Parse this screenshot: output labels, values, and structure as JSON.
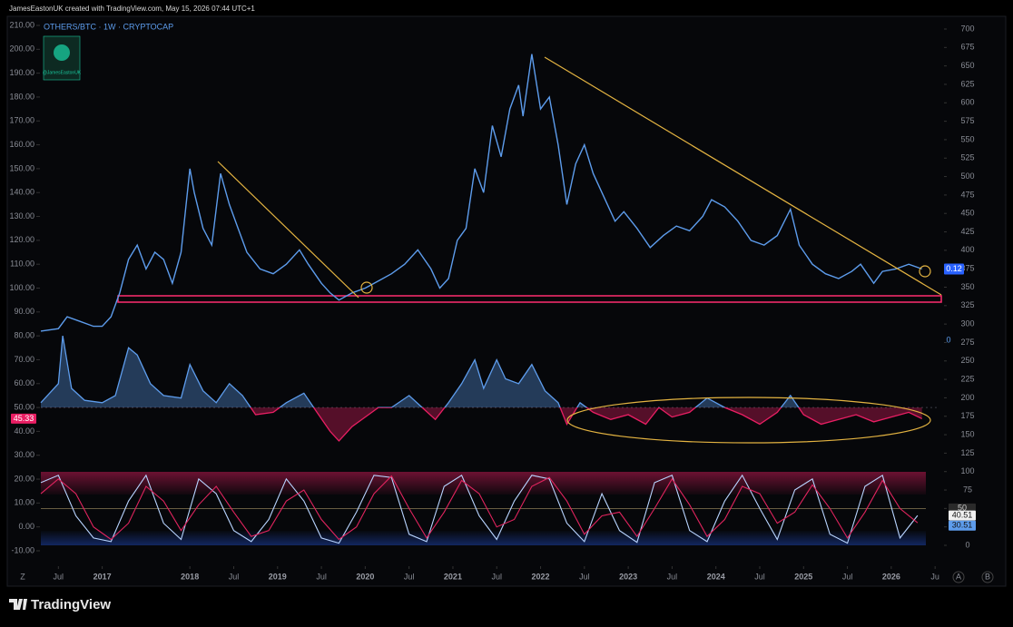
{
  "header": "JamesEastonUK created with TradingView.com, May 15, 2026 07:44 UTC+1",
  "footer": "TradingView",
  "controls": [
    "Z",
    "A",
    "B"
  ],
  "chart_data": {
    "type": "line",
    "title": "OTHERS/BTC · 1W · CRYPTOCAP",
    "watermark": "@JamesEastonUK",
    "grid": false,
    "last_price": 0.12,
    "extra_tag": 0,
    "rsi_midline": 50,
    "stoch_midline": 50,
    "xlim": [
      2016.3,
      2026.55
    ],
    "xticks": [
      {
        "value": 2016.5,
        "label": "Jul"
      },
      {
        "value": 2017,
        "label": "2017"
      },
      {
        "value": 2018,
        "label": "2018"
      },
      {
        "value": 2018.5,
        "label": "Jul"
      },
      {
        "value": 2019,
        "label": "2019"
      },
      {
        "value": 2019.5,
        "label": "Jul"
      },
      {
        "value": 2020,
        "label": "2020"
      },
      {
        "value": 2020.5,
        "label": "Jul"
      },
      {
        "value": 2021,
        "label": "2021"
      },
      {
        "value": 2021.5,
        "label": "Jul"
      },
      {
        "value": 2022,
        "label": "2022"
      },
      {
        "value": 2022.5,
        "label": "Jul"
      },
      {
        "value": 2023,
        "label": "2023"
      },
      {
        "value": 2023.5,
        "label": "Jul"
      },
      {
        "value": 2024,
        "label": "2024"
      },
      {
        "value": 2024.5,
        "label": "Jul"
      },
      {
        "value": 2025,
        "label": "2025"
      },
      {
        "value": 2025.5,
        "label": "Jul"
      },
      {
        "value": 2026,
        "label": "2026"
      },
      {
        "value": 2026.5,
        "label": "Ju"
      }
    ],
    "ylim": [
      -10,
      210
    ],
    "yticks": [
      {
        "value": 210,
        "label": "210.00"
      },
      {
        "value": 200,
        "label": "200.00"
      },
      {
        "value": 190,
        "label": "190.00"
      },
      {
        "value": 180,
        "label": "180.00"
      },
      {
        "value": 170,
        "label": "170.00"
      },
      {
        "value": 160,
        "label": "160.00"
      },
      {
        "value": 150,
        "label": "150.00"
      },
      {
        "value": 140,
        "label": "140.00"
      },
      {
        "value": 130,
        "label": "130.00"
      },
      {
        "value": 120,
        "label": "120.00"
      },
      {
        "value": 110,
        "label": "110.00"
      },
      {
        "value": 100,
        "label": "100.00"
      },
      {
        "value": 90,
        "label": "90.00"
      },
      {
        "value": 80,
        "label": "80.00"
      },
      {
        "value": 70,
        "label": "70.00"
      },
      {
        "value": 60,
        "label": "60.00"
      },
      {
        "value": 50,
        "label": "50.00"
      },
      {
        "value": 40,
        "label": "40.00"
      },
      {
        "value": 30,
        "label": "30.00"
      },
      {
        "value": 20,
        "label": "20.00"
      },
      {
        "value": 10,
        "label": "10.00"
      },
      {
        "value": 0,
        "label": "0.00"
      },
      {
        "value": -10,
        "label": "-10.00"
      }
    ],
    "y2lim": [
      0,
      700
    ],
    "y2ticks": [
      700,
      675,
      650,
      625,
      600,
      575,
      550,
      525,
      500,
      475,
      450,
      425,
      400,
      375,
      350,
      325,
      300,
      275,
      250,
      225,
      200,
      175,
      150,
      125,
      100,
      75,
      50,
      25,
      0
    ],
    "series": [
      {
        "color": "#5d9cec",
        "x": [
          2016.3,
          2016.5,
          2016.6,
          2016.75,
          2016.9,
          2017.0,
          2017.1,
          2017.2,
          2017.3,
          2017.4,
          2017.5,
          2017.6,
          2017.7,
          2017.8,
          2017.9,
          2018.0,
          2018.05,
          2018.15,
          2018.25,
          2018.35,
          2018.45,
          2018.55,
          2018.65,
          2018.8,
          2018.95,
          2019.1,
          2019.25,
          2019.35,
          2019.5,
          2019.6,
          2019.7,
          2019.85,
          2020.0,
          2020.15,
          2020.3,
          2020.45,
          2020.6,
          2020.75,
          2020.85,
          2020.95,
          2021.05,
          2021.15,
          2021.25,
          2021.35,
          2021.45,
          2021.55,
          2021.65,
          2021.75,
          2021.8,
          2021.9,
          2022.0,
          2022.1,
          2022.2,
          2022.3,
          2022.4,
          2022.5,
          2022.6,
          2022.7,
          2022.85,
          2022.95,
          2023.1,
          2023.25,
          2023.4,
          2023.55,
          2023.7,
          2023.85,
          2023.95,
          2024.1,
          2024.25,
          2024.4,
          2024.55,
          2024.7,
          2024.85,
          2024.95,
          2025.1,
          2025.25,
          2025.4,
          2025.55,
          2025.65,
          2025.8,
          2025.9,
          2026.05,
          2026.2,
          2026.35
        ],
        "values": [
          82,
          83,
          88,
          86,
          84,
          84,
          88,
          98,
          112,
          118,
          108,
          115,
          112,
          102,
          115,
          150,
          140,
          125,
          118,
          148,
          135,
          125,
          115,
          108,
          106,
          110,
          116,
          110,
          102,
          98,
          95,
          98,
          100,
          103,
          106,
          110,
          116,
          108,
          100,
          104,
          120,
          125,
          150,
          140,
          168,
          155,
          175,
          185,
          172,
          198,
          175,
          180,
          160,
          135,
          152,
          160,
          148,
          140,
          128,
          132,
          125,
          117,
          122,
          126,
          124,
          130,
          137,
          134,
          128,
          120,
          118,
          122,
          133,
          118,
          110,
          106,
          104,
          107,
          110,
          102,
          107,
          108,
          110,
          108
        ]
      },
      {
        "color": "#e91e63",
        "x": [
          2016.3,
          2016.5,
          2016.55,
          2016.65,
          2016.8,
          2017.0,
          2017.15,
          2017.3,
          2017.4,
          2017.55,
          2017.7,
          2017.9,
          2018.0,
          2018.15,
          2018.3,
          2018.45,
          2018.6,
          2018.75,
          2018.95,
          2019.1,
          2019.3,
          2019.45,
          2019.6,
          2019.7,
          2019.85,
          2020.0,
          2020.15,
          2020.3,
          2020.5,
          2020.65,
          2020.8,
          2020.95,
          2021.1,
          2021.25,
          2021.35,
          2021.5,
          2021.6,
          2021.75,
          2021.9,
          2022.05,
          2022.2,
          2022.3,
          2022.45,
          2022.6,
          2022.8,
          2023.0,
          2023.2,
          2023.35,
          2023.5,
          2023.7,
          2023.9,
          2024.1,
          2024.3,
          2024.5,
          2024.7,
          2024.85,
          2025.0,
          2025.2,
          2025.4,
          2025.6,
          2025.8,
          2026.0,
          2026.2,
          2026.35
        ],
        "values": [
          52,
          60,
          80,
          58,
          53,
          52,
          55,
          75,
          72,
          60,
          55,
          54,
          68,
          57,
          52,
          60,
          55,
          47,
          48,
          52,
          56,
          48,
          40,
          36,
          42,
          46,
          50,
          50,
          55,
          50,
          45,
          52,
          60,
          70,
          58,
          70,
          62,
          60,
          68,
          57,
          52,
          43,
          52,
          48,
          45,
          47,
          43,
          50,
          46,
          48,
          54,
          50,
          47,
          43,
          48,
          55,
          47,
          43,
          45,
          47,
          44,
          46,
          48,
          45.33
        ]
      },
      {
        "color": "#b8d4ff",
        "axis": "y2",
        "x": [
          2016.3,
          2016.5,
          2016.7,
          2016.9,
          2017.1,
          2017.3,
          2017.5,
          2017.7,
          2017.9,
          2018.1,
          2018.3,
          2018.5,
          2018.7,
          2018.9,
          2019.1,
          2019.3,
          2019.5,
          2019.7,
          2019.9,
          2020.1,
          2020.3,
          2020.5,
          2020.7,
          2020.9,
          2021.1,
          2021.3,
          2021.5,
          2021.7,
          2021.9,
          2022.1,
          2022.3,
          2022.5,
          2022.7,
          2022.9,
          2023.1,
          2023.3,
          2023.5,
          2023.7,
          2023.9,
          2024.1,
          2024.3,
          2024.5,
          2024.7,
          2024.9,
          2025.1,
          2025.3,
          2025.5,
          2025.7,
          2025.9,
          2026.1,
          2026.3
        ],
        "values": [
          85,
          95,
          40,
          10,
          5,
          60,
          95,
          30,
          8,
          90,
          70,
          20,
          5,
          35,
          90,
          60,
          10,
          3,
          45,
          95,
          92,
          15,
          5,
          80,
          95,
          40,
          8,
          60,
          95,
          90,
          30,
          5,
          70,
          20,
          4,
          85,
          95,
          20,
          5,
          60,
          95,
          50,
          8,
          75,
          90,
          15,
          3,
          80,
          95,
          10,
          40.51
        ]
      },
      {
        "color": "#e0245e",
        "axis": "y2",
        "x": [
          2016.3,
          2016.5,
          2016.7,
          2016.9,
          2017.1,
          2017.3,
          2017.5,
          2017.7,
          2017.9,
          2018.1,
          2018.3,
          2018.5,
          2018.7,
          2018.9,
          2019.1,
          2019.3,
          2019.5,
          2019.7,
          2019.9,
          2020.1,
          2020.3,
          2020.5,
          2020.7,
          2020.9,
          2021.1,
          2021.3,
          2021.5,
          2021.7,
          2021.9,
          2022.1,
          2022.3,
          2022.5,
          2022.7,
          2022.9,
          2023.1,
          2023.3,
          2023.5,
          2023.7,
          2023.9,
          2024.1,
          2024.3,
          2024.5,
          2024.7,
          2024.9,
          2025.1,
          2025.3,
          2025.5,
          2025.7,
          2025.9,
          2026.1,
          2026.3
        ],
        "values": [
          70,
          90,
          70,
          25,
          8,
          30,
          80,
          60,
          20,
          55,
          80,
          45,
          12,
          20,
          60,
          75,
          35,
          8,
          25,
          70,
          94,
          50,
          10,
          45,
          88,
          70,
          25,
          35,
          80,
          92,
          60,
          15,
          40,
          45,
          12,
          50,
          90,
          55,
          12,
          35,
          80,
          70,
          30,
          45,
          82,
          50,
          10,
          45,
          88,
          50,
          30.51
        ]
      }
    ]
  }
}
